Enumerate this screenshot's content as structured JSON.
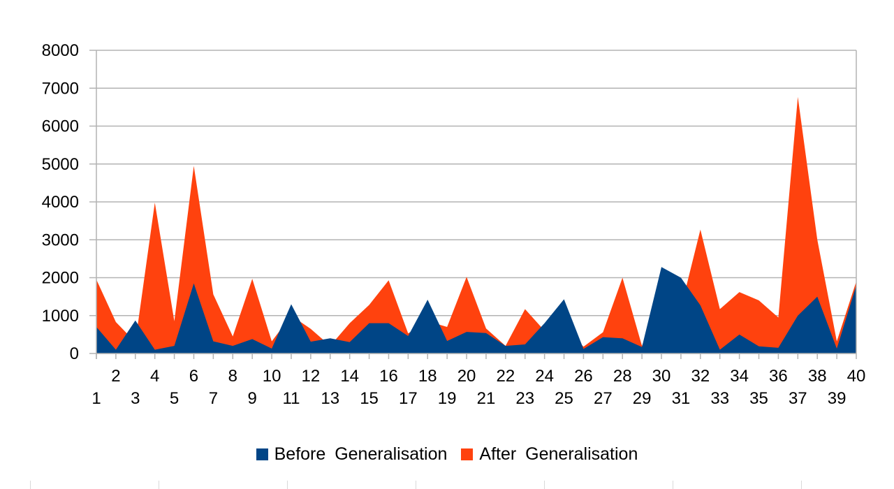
{
  "chart_data": {
    "type": "area",
    "title": "",
    "xlabel": "",
    "ylabel": "",
    "x": [
      1,
      2,
      3,
      4,
      5,
      6,
      7,
      8,
      9,
      10,
      11,
      12,
      13,
      14,
      15,
      16,
      17,
      18,
      19,
      20,
      21,
      22,
      23,
      24,
      25,
      26,
      27,
      28,
      29,
      30,
      31,
      32,
      33,
      34,
      35,
      36,
      37,
      38,
      39,
      40
    ],
    "ylim": [
      0,
      8000
    ],
    "yticks": [
      0,
      1000,
      2000,
      3000,
      4000,
      5000,
      6000,
      7000,
      8000
    ],
    "grid": true,
    "legend_position": "bottom",
    "series": [
      {
        "name": "Before  Generalisation",
        "color": "#004586",
        "values": [
          700,
          100,
          870,
          100,
          200,
          1850,
          320,
          200,
          380,
          130,
          1300,
          310,
          400,
          300,
          800,
          800,
          460,
          1420,
          330,
          570,
          540,
          200,
          240,
          800,
          1430,
          120,
          430,
          400,
          170,
          2280,
          2000,
          1270,
          100,
          500,
          190,
          150,
          1000,
          1500,
          130,
          1800
        ]
      },
      {
        "name": "After  Generalisation",
        "color": "#ff420e",
        "values": [
          1950,
          830,
          300,
          3980,
          850,
          4950,
          1560,
          450,
          1970,
          320,
          1000,
          650,
          200,
          800,
          1280,
          1930,
          530,
          850,
          700,
          2020,
          660,
          200,
          1170,
          600,
          700,
          180,
          560,
          2000,
          200,
          1450,
          1200,
          3270,
          1170,
          1620,
          1400,
          950,
          6770,
          3000,
          320,
          1900
        ]
      }
    ]
  }
}
